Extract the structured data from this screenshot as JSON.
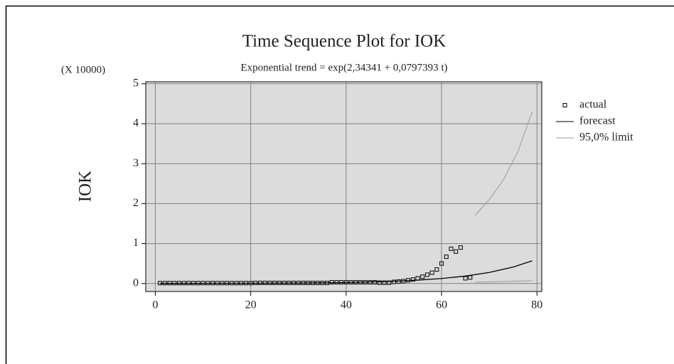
{
  "chart_data": {
    "type": "scatter",
    "title": "Time Sequence Plot for IOK",
    "subtitle": "Exponential trend = exp(2,34341 + 0,0797393 t)",
    "y_multiplier": "(X 10000)",
    "ylabel": "IOK",
    "xlim": [
      -2,
      81
    ],
    "ylim": [
      -0.2,
      5.05
    ],
    "xticks": [
      0,
      20,
      40,
      60,
      80
    ],
    "yticks": [
      0,
      1,
      2,
      3,
      4,
      5
    ],
    "grid": true,
    "legend": "right",
    "series": [
      {
        "name": "actual",
        "color": "#000000",
        "marker": "square",
        "x": [
          1,
          2,
          3,
          4,
          5,
          6,
          7,
          8,
          9,
          10,
          11,
          12,
          13,
          14,
          15,
          16,
          17,
          18,
          19,
          20,
          21,
          22,
          23,
          24,
          25,
          26,
          27,
          28,
          29,
          30,
          31,
          32,
          33,
          34,
          35,
          36,
          37,
          38,
          39,
          40,
          41,
          42,
          43,
          44,
          45,
          46,
          47,
          48,
          49,
          50,
          51,
          52,
          53,
          54,
          55,
          56,
          57,
          58,
          59,
          60,
          61,
          62,
          63,
          64,
          65,
          66
        ],
        "values": [
          0.01,
          0.01,
          0.01,
          0.01,
          0.01,
          0.01,
          0.01,
          0.01,
          0.01,
          0.01,
          0.01,
          0.01,
          0.01,
          0.01,
          0.01,
          0.01,
          0.01,
          0.01,
          0.01,
          0.01,
          0.015,
          0.015,
          0.015,
          0.015,
          0.015,
          0.015,
          0.015,
          0.015,
          0.015,
          0.015,
          0.015,
          0.015,
          0.015,
          0.015,
          0.015,
          0.015,
          0.03,
          0.03,
          0.03,
          0.03,
          0.03,
          0.03,
          0.03,
          0.03,
          0.03,
          0.03,
          0.02,
          0.02,
          0.02,
          0.04,
          0.05,
          0.06,
          0.08,
          0.1,
          0.13,
          0.17,
          0.22,
          0.27,
          0.35,
          0.5,
          0.67,
          0.87,
          0.8,
          0.9,
          0.13,
          0.15
        ]
      },
      {
        "name": "forecast",
        "color": "#000000",
        "marker": "line",
        "x": [
          1,
          10,
          20,
          30,
          40,
          50,
          55,
          60,
          65,
          70,
          75,
          79
        ],
        "values": [
          0.0011,
          0.0023,
          0.0051,
          0.0114,
          0.0253,
          0.0561,
          0.0837,
          0.1246,
          0.1857,
          0.2766,
          0.4121,
          0.567
        ]
      },
      {
        "name": "95,0% limit",
        "color": "#999999",
        "marker": "band",
        "x": [
          67,
          70,
          73,
          76,
          79
        ],
        "upper": [
          1.7,
          2.1,
          2.6,
          3.3,
          4.3
        ],
        "lower": [
          0.03,
          0.04,
          0.05,
          0.06,
          0.07
        ]
      }
    ]
  }
}
